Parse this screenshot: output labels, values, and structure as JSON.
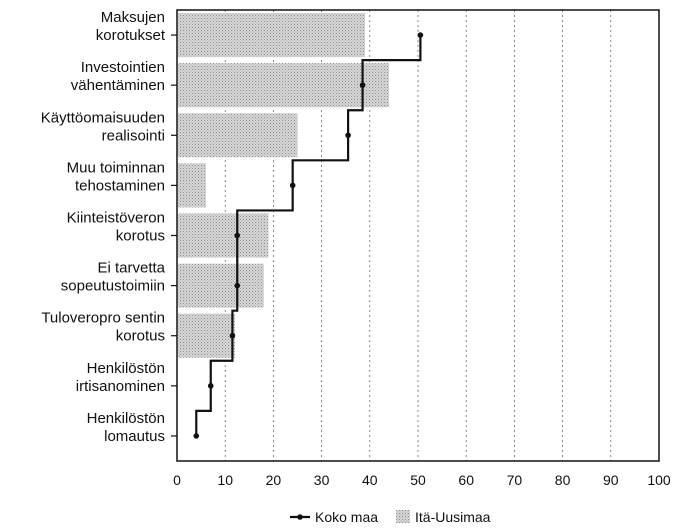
{
  "chart_data": {
    "type": "bar",
    "orientation": "horizontal",
    "categories": [
      [
        "Maksujen",
        "korotukset"
      ],
      [
        "Investointien",
        "vähentäminen"
      ],
      [
        "Käyttöomaisuuden",
        "realisointi"
      ],
      [
        "Muu toiminnan",
        "tehostaminen"
      ],
      [
        "Kiinteistöveron",
        "korotus"
      ],
      [
        "Ei tarvetta",
        "sopeutustoimiin"
      ],
      [
        "Tuloveropro sentin",
        "korotus"
      ],
      [
        "Henkilöstön",
        "irtisanominen"
      ],
      [
        "Henkilöstön",
        "lomautus"
      ]
    ],
    "series": [
      {
        "name": "Itä-Uusimaa",
        "style": "bar",
        "color": "#c8c8c8",
        "values": [
          39,
          44,
          25,
          6,
          19,
          18,
          12,
          0,
          0
        ]
      },
      {
        "name": "Koko maa",
        "style": "step-line",
        "color": "#111111",
        "values": [
          50.5,
          38.5,
          35.5,
          24,
          12.5,
          12.5,
          11.5,
          7,
          4
        ]
      }
    ],
    "xlim": [
      0,
      100
    ],
    "x_ticks": [
      "0",
      "10",
      "20",
      "30",
      "40",
      "50",
      "60",
      "70",
      "80",
      "90",
      "100"
    ],
    "grid": "vertical dashed",
    "legend_position": "bottom-center"
  }
}
